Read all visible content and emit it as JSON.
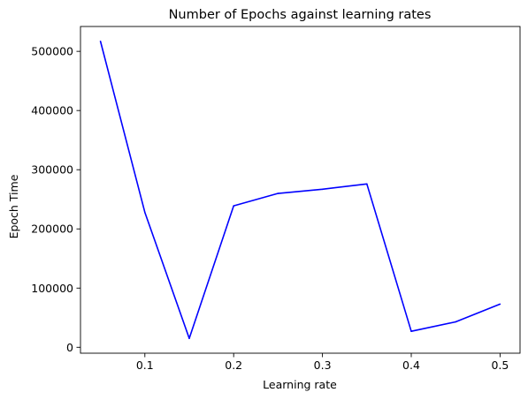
{
  "chart_data": {
    "type": "line",
    "title": "Number of Epochs against learning rates",
    "xlabel": "Learning rate",
    "ylabel": "Epoch Time",
    "x": [
      0.05,
      0.1,
      0.15,
      0.2,
      0.25,
      0.3,
      0.35,
      0.4,
      0.45,
      0.5
    ],
    "series": [
      {
        "values": [
          517000,
          228000,
          15000,
          239000,
          260000,
          267000,
          276000,
          27000,
          43000,
          73000
        ],
        "color": "#0000ff"
      }
    ],
    "xlim": [
      0.0275,
      0.5225
    ],
    "ylim": [
      -10000,
      542000
    ],
    "xticks": [
      0.1,
      0.2,
      0.3,
      0.4,
      0.5
    ],
    "xtick_labels": [
      "0.1",
      "0.2",
      "0.3",
      "0.4",
      "0.5"
    ],
    "yticks": [
      0,
      100000,
      200000,
      300000,
      400000,
      500000
    ],
    "ytick_labels": [
      "0",
      "100000",
      "200000",
      "300000",
      "400000",
      "500000"
    ],
    "grid": false,
    "legend": "none"
  }
}
